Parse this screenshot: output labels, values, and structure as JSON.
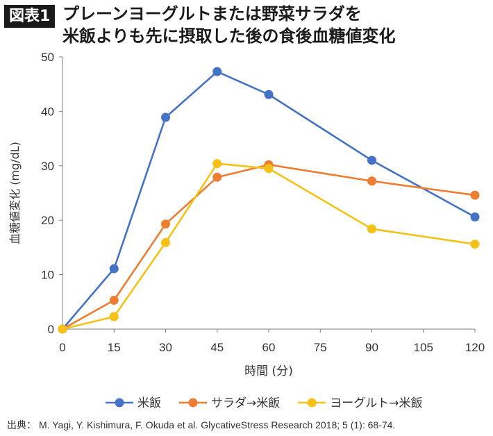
{
  "figure": {
    "badge": "図表1",
    "title_line1": "プレーンヨーグルトまたは野菜サラダを",
    "title_line2": "米飯よりも先に摂取した後の食後血糖値変化"
  },
  "source": {
    "label": "出典：",
    "text": "M. Yagi, Y. Kishimura, F. Okuda et al. GlycativeStress Research 2018; 5 (1): 68-74."
  },
  "chart_data": {
    "type": "line",
    "title": "プレーンヨーグルトまたは野菜サラダを米飯よりも先に摂取した後の食後血糖値変化",
    "xlabel": "時間 (分)",
    "ylabel": "血糖値変化 (mg/dL)",
    "x_ticks": [
      0,
      15,
      30,
      45,
      60,
      75,
      90,
      105,
      120
    ],
    "xlim": [
      0,
      120
    ],
    "y_ticks": [
      0,
      10,
      20,
      30,
      40,
      50
    ],
    "ylim": [
      0,
      50
    ],
    "grid": false,
    "legend_position": "bottom",
    "x": [
      0,
      15,
      30,
      45,
      60,
      90,
      120
    ],
    "series": [
      {
        "name": "米飯",
        "color": "#4472c4",
        "values": [
          0,
          11.1,
          38.9,
          47.3,
          43.1,
          31.0,
          20.6
        ]
      },
      {
        "name": "サラダ→米飯",
        "color": "#ed7d31",
        "values": [
          0,
          5.3,
          19.3,
          27.9,
          30.2,
          27.2,
          24.6
        ]
      },
      {
        "name": "ヨーグルト→米飯",
        "color": "#f5c116",
        "values": [
          0,
          2.3,
          15.9,
          30.4,
          29.5,
          18.4,
          15.6
        ]
      }
    ]
  }
}
